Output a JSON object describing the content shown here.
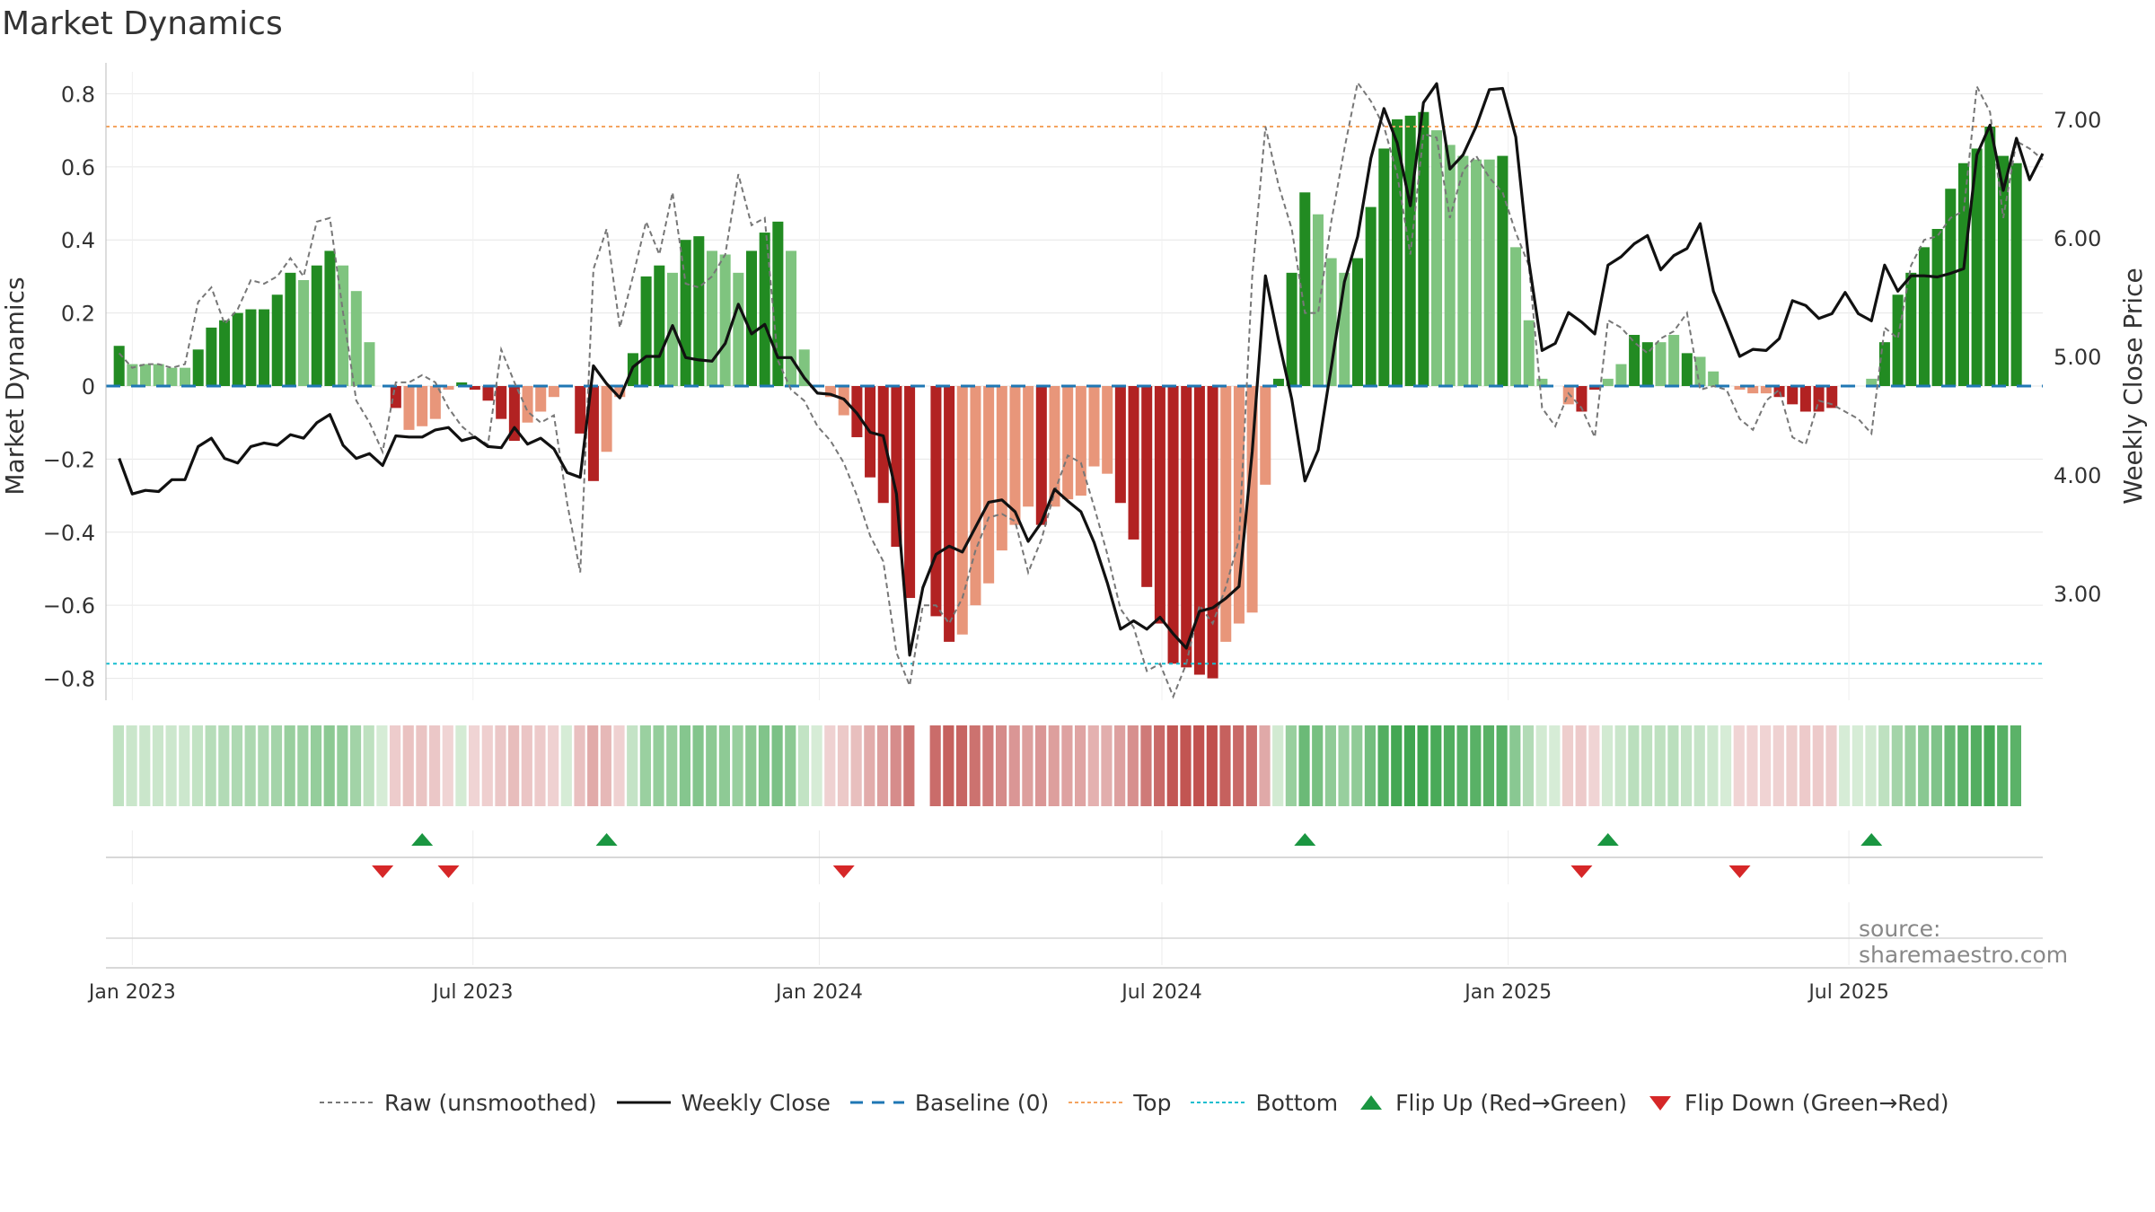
{
  "title": "Market Dynamics",
  "source": "source: sharemaestro.com",
  "colors": {
    "strong_green": "#228b22",
    "light_green": "#7fc47f",
    "strong_red": "#b22222",
    "light_red": "#e8967a",
    "weekly_close": "#111111",
    "raw": "#777777",
    "baseline": "#1f77b4",
    "top": "#f4a460",
    "bottom": "#17becf",
    "flip_up": "#1a9641",
    "flip_down": "#d62728"
  },
  "legend": [
    {
      "key": "raw",
      "label": "Raw (unsmoothed)",
      "icon": "dashed-gray-line"
    },
    {
      "key": "close",
      "label": "Weekly Close",
      "icon": "solid-black-line"
    },
    {
      "key": "baseline",
      "label": "Baseline (0)",
      "icon": "dashed-blue-line"
    },
    {
      "key": "top",
      "label": "Top",
      "icon": "dotted-orange-line"
    },
    {
      "key": "bottom",
      "label": "Bottom",
      "icon": "dotted-cyan-line"
    },
    {
      "key": "flipup",
      "label": "Flip Up (Red→Green)",
      "icon": "green-up-triangle"
    },
    {
      "key": "flipdown",
      "label": "Flip Down (Green→Red)",
      "icon": "red-down-triangle"
    }
  ],
  "chart_data": {
    "type": "bar",
    "x_axis": {
      "ticks": [
        {
          "date": "2023-01-01",
          "label": "Jan 2023"
        },
        {
          "date": "2023-07-01",
          "label": "Jul 2023"
        },
        {
          "date": "2024-01-01",
          "label": "Jan 2024"
        },
        {
          "date": "2024-07-01",
          "label": "Jul 2024"
        },
        {
          "date": "2025-01-01",
          "label": "Jan 2025"
        },
        {
          "date": "2025-07-01",
          "label": "Jul 2025"
        }
      ],
      "range": [
        "2022-12-18",
        "2025-10-12"
      ]
    },
    "y_left": {
      "label": "Market Dynamics",
      "range": [
        -0.86,
        0.86
      ],
      "ticks": [
        0.8,
        0.6,
        0.4,
        0.2,
        0,
        -0.2,
        -0.4,
        -0.6,
        -0.8
      ],
      "tick_labels": [
        "0.8",
        "0.6",
        "0.4",
        "0.2",
        "0",
        "−0.2",
        "−0.4",
        "−0.6",
        "−0.8"
      ]
    },
    "y_right": {
      "label": "Weekly Close Price",
      "range": [
        2.1,
        7.4
      ],
      "ticks": [
        7,
        6,
        5,
        4,
        3
      ],
      "tick_labels": [
        "7.00",
        "6.00",
        "5.00",
        "4.00",
        "3.00"
      ]
    },
    "top_line": 0.71,
    "bottom_line": -0.76,
    "baseline": 0,
    "start_date": "2022-12-25",
    "week_step_days": 7,
    "bar_values": [
      0.11,
      0.06,
      0.06,
      0.06,
      0.05,
      0.05,
      0.1,
      0.16,
      0.18,
      0.2,
      0.21,
      0.21,
      0.25,
      0.31,
      0.29,
      0.33,
      0.37,
      0.33,
      0.26,
      0.12,
      0.0,
      -0.06,
      -0.12,
      -0.11,
      -0.09,
      -0.01,
      0.01,
      -0.01,
      -0.04,
      -0.09,
      -0.15,
      -0.1,
      -0.07,
      -0.03,
      0.0,
      -0.13,
      -0.26,
      -0.18,
      -0.03,
      0.09,
      0.3,
      0.33,
      0.31,
      0.4,
      0.41,
      0.37,
      0.36,
      0.31,
      0.37,
      0.42,
      0.45,
      0.37,
      0.1,
      0.0,
      -0.03,
      -0.08,
      -0.14,
      -0.25,
      -0.32,
      -0.44,
      -0.58,
      0.0,
      -0.63,
      -0.7,
      -0.68,
      -0.6,
      -0.54,
      -0.45,
      -0.38,
      -0.33,
      -0.38,
      -0.33,
      -0.31,
      -0.3,
      -0.22,
      -0.24,
      -0.32,
      -0.42,
      -0.55,
      -0.65,
      -0.76,
      -0.77,
      -0.79,
      -0.8,
      -0.7,
      -0.65,
      -0.62,
      -0.27,
      0.02,
      0.31,
      0.53,
      0.47,
      0.35,
      0.31,
      0.35,
      0.49,
      0.65,
      0.73,
      0.74,
      0.75,
      0.7,
      0.66,
      0.63,
      0.62,
      0.62,
      0.63,
      0.38,
      0.18,
      0.02,
      0.0,
      -0.05,
      -0.07,
      -0.01,
      0.02,
      0.06,
      0.14,
      0.12,
      0.12,
      0.14,
      0.09,
      0.08,
      0.04,
      0.0,
      -0.01,
      -0.02,
      -0.02,
      -0.03,
      -0.05,
      -0.07,
      -0.07,
      -0.06,
      0.0,
      0.0,
      0.02,
      0.12,
      0.25,
      0.31,
      0.38,
      0.43,
      0.54,
      0.61,
      0.65,
      0.71,
      0.63,
      0.61
    ],
    "bar_shade": [
      0,
      1,
      1,
      1,
      1,
      1,
      0,
      0,
      0,
      0,
      0,
      0,
      0,
      0,
      1,
      0,
      0,
      1,
      1,
      1,
      0,
      0,
      1,
      1,
      1,
      1,
      0,
      0,
      0,
      0,
      0,
      1,
      1,
      1,
      0,
      0,
      0,
      1,
      1,
      0,
      0,
      0,
      1,
      0,
      0,
      1,
      1,
      1,
      0,
      0,
      0,
      1,
      1,
      0,
      1,
      1,
      0,
      0,
      0,
      0,
      0,
      0,
      0,
      0,
      1,
      1,
      1,
      1,
      1,
      1,
      0,
      1,
      1,
      1,
      1,
      1,
      0,
      0,
      0,
      0,
      0,
      0,
      0,
      0,
      1,
      1,
      1,
      1,
      0,
      0,
      0,
      1,
      1,
      1,
      0,
      0,
      0,
      0,
      0,
      0,
      1,
      1,
      1,
      1,
      1,
      0,
      1,
      1,
      1,
      1,
      1,
      0,
      0,
      1,
      1,
      0,
      0,
      1,
      1,
      0,
      1,
      1,
      1,
      1,
      1,
      1,
      0,
      0,
      0,
      0,
      0,
      0,
      1,
      1,
      0,
      0,
      0,
      0,
      0,
      0,
      0,
      0,
      0,
      0,
      0,
      1,
      1
    ],
    "close": [
      4.14,
      3.84,
      3.87,
      3.86,
      3.96,
      3.96,
      4.24,
      4.31,
      4.14,
      4.1,
      4.24,
      4.27,
      4.25,
      4.34,
      4.31,
      4.44,
      4.51,
      4.25,
      4.14,
      4.18,
      4.08,
      4.33,
      4.32,
      4.32,
      4.38,
      4.4,
      4.29,
      4.32,
      4.24,
      4.23,
      4.4,
      4.26,
      4.31,
      4.22,
      4.02,
      3.98,
      4.92,
      4.77,
      4.65,
      4.91,
      5.0,
      5.0,
      5.26,
      4.99,
      4.97,
      4.96,
      5.11,
      5.44,
      5.19,
      5.27,
      4.99,
      4.99,
      4.82,
      4.69,
      4.68,
      4.64,
      4.52,
      4.36,
      4.33,
      3.84,
      2.48,
      3.05,
      3.33,
      3.4,
      3.35,
      3.56,
      3.77,
      3.79,
      3.69,
      3.44,
      3.6,
      3.88,
      3.78,
      3.69,
      3.43,
      3.09,
      2.7,
      2.77,
      2.7,
      2.8,
      2.66,
      2.54,
      2.85,
      2.88,
      2.96,
      3.06,
      4.2,
      5.68,
      5.14,
      4.64,
      3.95,
      4.21,
      4.91,
      5.63,
      6.01,
      6.67,
      7.09,
      6.8,
      6.27,
      7.14,
      7.3,
      6.58,
      6.7,
      6.94,
      7.25,
      7.26,
      6.85,
      5.8,
      5.05,
      5.11,
      5.37,
      5.29,
      5.19,
      5.77,
      5.84,
      5.95,
      6.02,
      5.73,
      5.85,
      5.91,
      6.12,
      5.55,
      5.28,
      5.0,
      5.06,
      5.05,
      5.15,
      5.47,
      5.43,
      5.32,
      5.36,
      5.54,
      5.36,
      5.3,
      5.77,
      5.55,
      5.68,
      5.68,
      5.67,
      5.7,
      5.74,
      6.7,
      6.95,
      6.4,
      6.84,
      6.49,
      6.71
    ],
    "raw_values": [
      0.09,
      0.05,
      0.06,
      0.06,
      0.05,
      0.06,
      0.23,
      0.27,
      0.17,
      0.21,
      0.29,
      0.28,
      0.3,
      0.35,
      0.3,
      0.45,
      0.46,
      0.2,
      -0.04,
      -0.1,
      -0.18,
      0.01,
      0.01,
      0.03,
      0.01,
      -0.06,
      -0.11,
      -0.14,
      -0.16,
      0.1,
      0.01,
      -0.07,
      -0.1,
      -0.08,
      -0.32,
      -0.51,
      0.32,
      0.43,
      0.16,
      0.3,
      0.45,
      0.36,
      0.53,
      0.28,
      0.27,
      0.3,
      0.36,
      0.58,
      0.44,
      0.46,
      0.07,
      -0.01,
      -0.04,
      -0.11,
      -0.15,
      -0.21,
      -0.3,
      -0.41,
      -0.48,
      -0.73,
      -0.82,
      -0.6,
      -0.6,
      -0.65,
      -0.58,
      -0.45,
      -0.36,
      -0.35,
      -0.37,
      -0.51,
      -0.42,
      -0.29,
      -0.19,
      -0.21,
      -0.33,
      -0.46,
      -0.61,
      -0.66,
      -0.78,
      -0.76,
      -0.85,
      -0.76,
      -0.6,
      -0.65,
      -0.55,
      -0.42,
      0.3,
      0.71,
      0.55,
      0.43,
      0.2,
      0.2,
      0.45,
      0.65,
      0.83,
      0.78,
      0.71,
      0.58,
      0.36,
      0.69,
      0.68,
      0.46,
      0.59,
      0.63,
      0.57,
      0.53,
      0.42,
      0.33,
      -0.06,
      -0.11,
      -0.02,
      -0.06,
      -0.14,
      0.18,
      0.16,
      0.12,
      0.09,
      0.13,
      0.15,
      0.2,
      -0.01,
      0.0,
      -0.01,
      -0.09,
      -0.12,
      -0.04,
      -0.01,
      -0.14,
      -0.16,
      -0.04,
      -0.05,
      -0.07,
      -0.09,
      -0.13,
      0.16,
      0.13,
      0.33,
      0.4,
      0.41,
      0.46,
      0.48,
      0.82,
      0.75,
      0.46,
      0.67,
      0.65,
      0.62
    ],
    "flips_up": [
      "2023-06-04",
      "2023-09-10",
      "2024-09-15",
      "2025-02-23",
      "2025-07-13"
    ],
    "flips_down": [
      "2023-05-14",
      "2023-06-18",
      "2024-01-14",
      "2025-02-09",
      "2025-05-04"
    ]
  }
}
